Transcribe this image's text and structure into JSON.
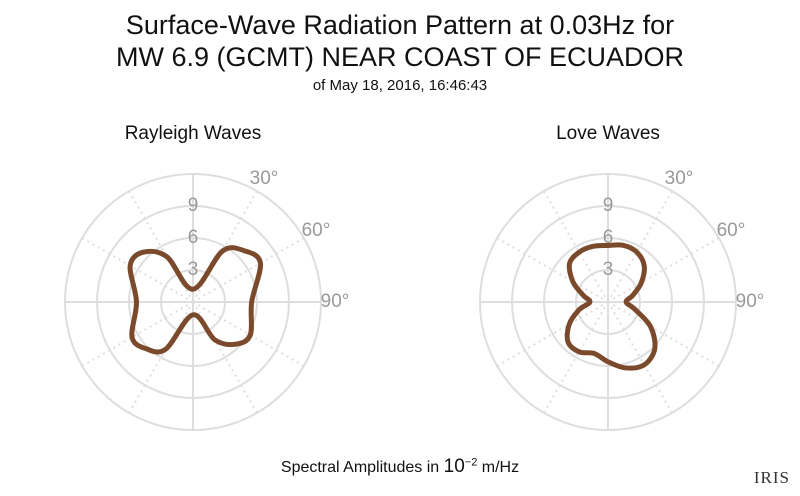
{
  "title_line1": "Surface-Wave Radiation Pattern at 0.03Hz for",
  "title_line2": "MW 6.9 (GCMT) NEAR COAST OF ECUADOR",
  "subtitle": "of May 18, 2016, 16:46:43",
  "footer": {
    "prefix": "Spectral Amplitudes in ",
    "base": "10",
    "exponent": "−2",
    "suffix": " m/Hz"
  },
  "logo_text": "IRIS",
  "colors": {
    "pattern": "#7B4A2D",
    "grid": "#dedede",
    "label": "#999999"
  },
  "chart_data": [
    {
      "type": "polar-line",
      "title": "Rayleigh Waves",
      "radial_ticks": [
        3,
        6,
        9
      ],
      "radial_max": 12,
      "angular_tick_labels": [
        "30°",
        "60°",
        "90°"
      ],
      "angular_grid_step_deg": 30,
      "series": [
        {
          "theta_deg": [
            0,
            30,
            45,
            60,
            90,
            120,
            135,
            150,
            180,
            210,
            225,
            240,
            270,
            300,
            315,
            330
          ],
          "r": [
            1.2,
            5.5,
            6.8,
            7.3,
            5.5,
            6.2,
            5.6,
            4.1,
            1.2,
            5.1,
            6.2,
            6.6,
            5.3,
            6.8,
            6.6,
            4.9
          ]
        }
      ]
    },
    {
      "type": "polar-line",
      "title": "Love Waves",
      "radial_ticks": [
        3,
        6,
        9
      ],
      "radial_max": 12,
      "angular_tick_labels": [
        "30°",
        "60°",
        "90°"
      ],
      "angular_grid_step_deg": 30,
      "series": [
        {
          "theta_deg": [
            0,
            15,
            30,
            45,
            60,
            75,
            90,
            105,
            120,
            135,
            150,
            165,
            180,
            195,
            210,
            225,
            240,
            255,
            270,
            285,
            300,
            315,
            330,
            345
          ],
          "r": [
            5.3,
            5.5,
            5.4,
            4.8,
            3.6,
            2.4,
            1.7,
            2.6,
            4.6,
            6.2,
            6.8,
            6.4,
            5.6,
            5.0,
            5.4,
            5.3,
            4.2,
            2.8,
            1.7,
            2.4,
            3.8,
            5.1,
            5.4,
            5.4
          ]
        }
      ]
    }
  ]
}
